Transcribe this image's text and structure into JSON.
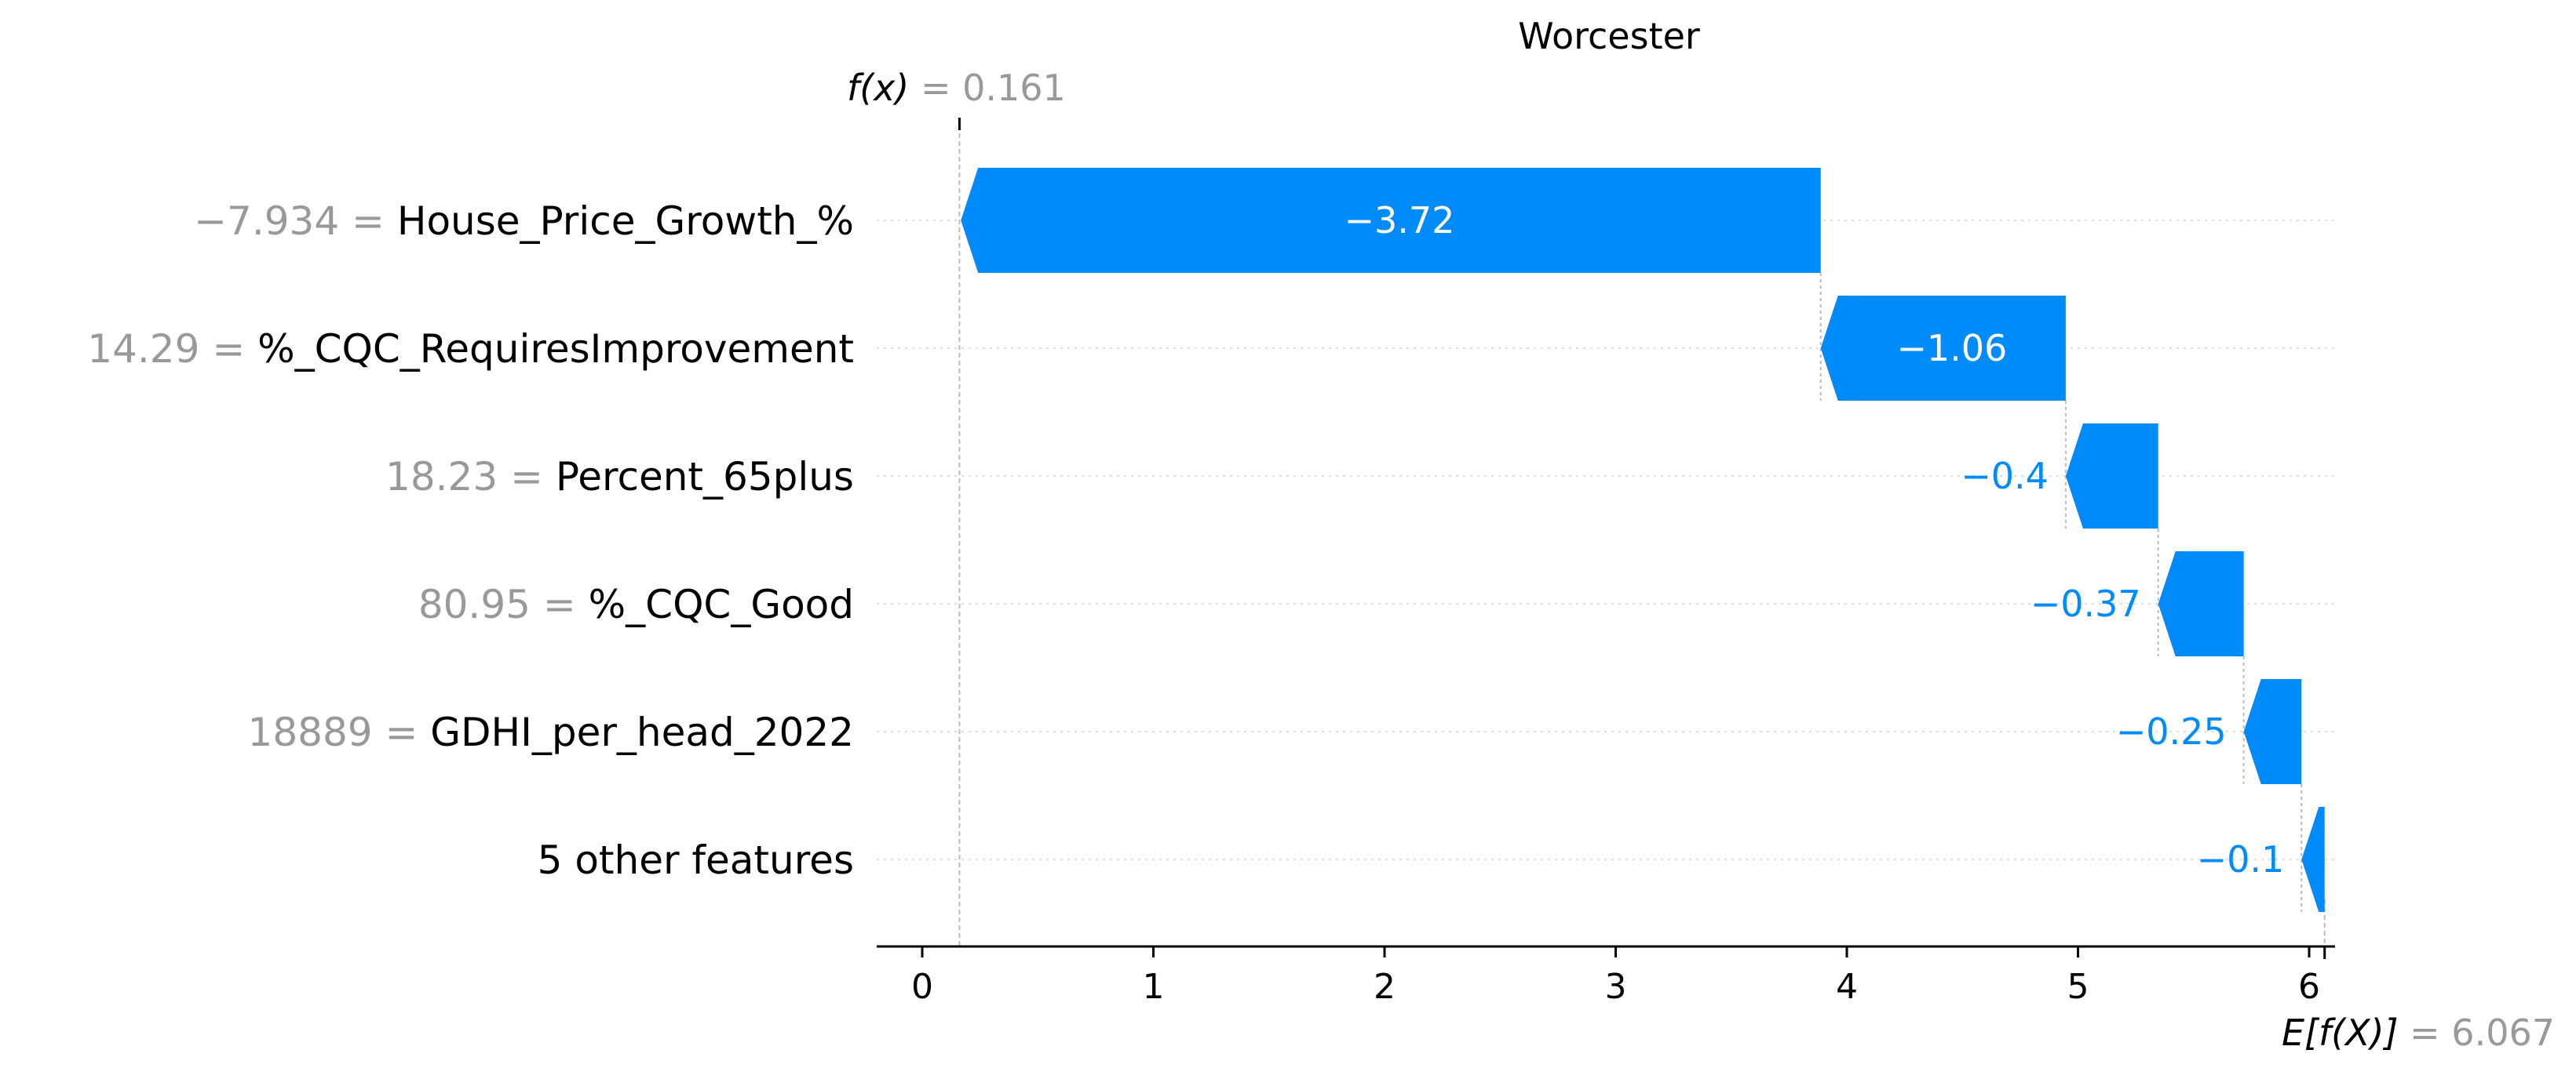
{
  "chart_data": {
    "type": "waterfall",
    "title": "Worcester",
    "base_value": 6.067,
    "base_label": "E[f(X)]",
    "base_text": " = 6.067",
    "output_value": 0.161,
    "output_label": "f(x)",
    "output_text": " = 0.161",
    "features": [
      {
        "name": "House_Price_Growth_%",
        "value_text": "−7.934 = ",
        "shap": -3.72,
        "label": "−3.72"
      },
      {
        "name": "%_CQC_RequiresImprovement",
        "value_text": "14.29 = ",
        "shap": -1.06,
        "label": "−1.06"
      },
      {
        "name": "Percent_65plus",
        "value_text": "18.23 = ",
        "shap": -0.4,
        "label": "−0.4"
      },
      {
        "name": "%_CQC_Good",
        "value_text": "80.95 = ",
        "shap": -0.37,
        "label": "−0.37"
      },
      {
        "name": "GDHI_per_head_2022",
        "value_text": "18889 = ",
        "shap": -0.25,
        "label": "−0.25"
      },
      {
        "name": "5 other features",
        "value_text": "",
        "shap": -0.1,
        "label": "−0.1"
      }
    ],
    "x_ticks": [
      0,
      1,
      2,
      3,
      4,
      5,
      6
    ],
    "x_tick_labels": [
      "0",
      "1",
      "2",
      "3",
      "4",
      "5",
      "6"
    ],
    "xlim": [
      -0.2,
      6.12
    ],
    "colors": {
      "negative": "#008bfb",
      "text_gray": "#999999"
    }
  }
}
